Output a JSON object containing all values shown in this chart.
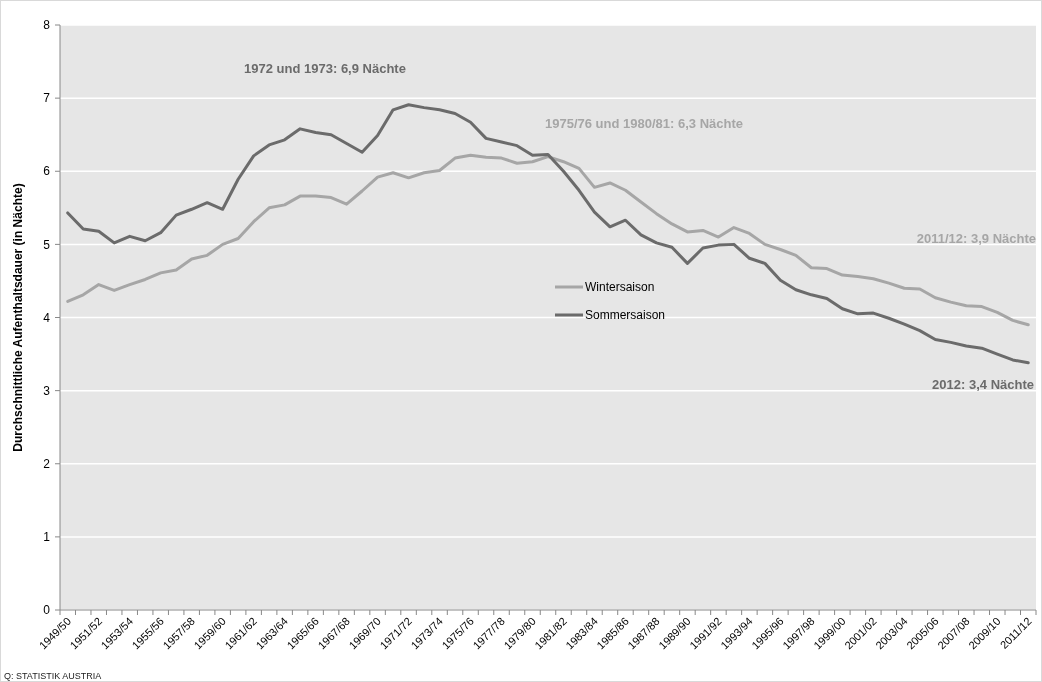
{
  "chart_data": {
    "type": "line",
    "ylabel": "Durchschnittliche Aufenthaltsdauer (in Nächte)",
    "categories": [
      "1949/50",
      null,
      "1951/52",
      null,
      "1953/54",
      null,
      "1955/56",
      null,
      "1957/58",
      null,
      "1959/60",
      null,
      "1961/62",
      null,
      "1963/64",
      null,
      "1965/66",
      null,
      "1967/68",
      null,
      "1969/70",
      null,
      "1971/72",
      null,
      "1973/74",
      null,
      "1975/76",
      null,
      "1977/78",
      null,
      "1979/80",
      null,
      "1981/82",
      null,
      "1983/84",
      null,
      "1985/86",
      null,
      "1987/88",
      null,
      "1989/90",
      null,
      "1991/92",
      null,
      "1993/94",
      null,
      "1995/96",
      null,
      "1997/98",
      null,
      "1999/00",
      null,
      "2001/02",
      null,
      "2003/04",
      null,
      "2005/06",
      null,
      "2007/08",
      null,
      "2009/10",
      null,
      "2011/12"
    ],
    "series": [
      {
        "name": "Wintersaison",
        "color": "#a6a6a6",
        "values": [
          4.22,
          4.31,
          4.45,
          4.37,
          4.45,
          4.52,
          4.61,
          4.65,
          4.8,
          4.85,
          5.0,
          5.08,
          5.31,
          5.5,
          5.54,
          5.66,
          5.66,
          5.64,
          5.55,
          5.73,
          5.92,
          5.98,
          5.91,
          5.98,
          6.01,
          6.18,
          6.22,
          6.19,
          6.18,
          6.11,
          6.13,
          6.2,
          6.13,
          6.04,
          5.78,
          5.84,
          5.74,
          5.58,
          5.42,
          5.28,
          5.17,
          5.19,
          5.1,
          5.23,
          5.15,
          5.0,
          4.93,
          4.85,
          4.68,
          4.67,
          4.58,
          4.56,
          4.53,
          4.47,
          4.4,
          4.39,
          4.27,
          4.21,
          4.16,
          4.15,
          4.07,
          3.96,
          3.9
        ]
      },
      {
        "name": "Sommersaison",
        "color": "#6b6b6b",
        "values": [
          5.43,
          5.21,
          5.18,
          5.02,
          5.11,
          5.05,
          5.16,
          5.4,
          5.48,
          5.57,
          5.48,
          5.89,
          6.21,
          6.36,
          6.43,
          6.58,
          6.53,
          6.5,
          6.38,
          6.26,
          6.49,
          6.84,
          6.91,
          6.87,
          6.84,
          6.79,
          6.67,
          6.45,
          6.4,
          6.35,
          6.22,
          6.23,
          6.0,
          5.74,
          5.44,
          5.24,
          5.33,
          5.13,
          5.02,
          4.96,
          4.74,
          4.95,
          4.99,
          5.0,
          4.81,
          4.74,
          4.51,
          4.38,
          4.31,
          4.26,
          4.12,
          4.05,
          4.06,
          3.99,
          3.91,
          3.82,
          3.7,
          3.66,
          3.61,
          3.58,
          3.5,
          3.42,
          3.38
        ]
      }
    ],
    "ylim": [
      0,
      8
    ],
    "yticks": [
      0,
      1,
      2,
      3,
      4,
      5,
      6,
      7,
      8
    ],
    "grid": "y",
    "legend": "center",
    "marker": "none",
    "line_style": "solid",
    "annotations": [
      "1972 und 1973: 6,9 Nächte",
      "1975/76 und 1980/81: 6,3 Nächte",
      "2011/12: 3,9 Nächte",
      "2012: 3,4 Nächte",
      "Q: STATISTIK AUSTRIA"
    ]
  }
}
